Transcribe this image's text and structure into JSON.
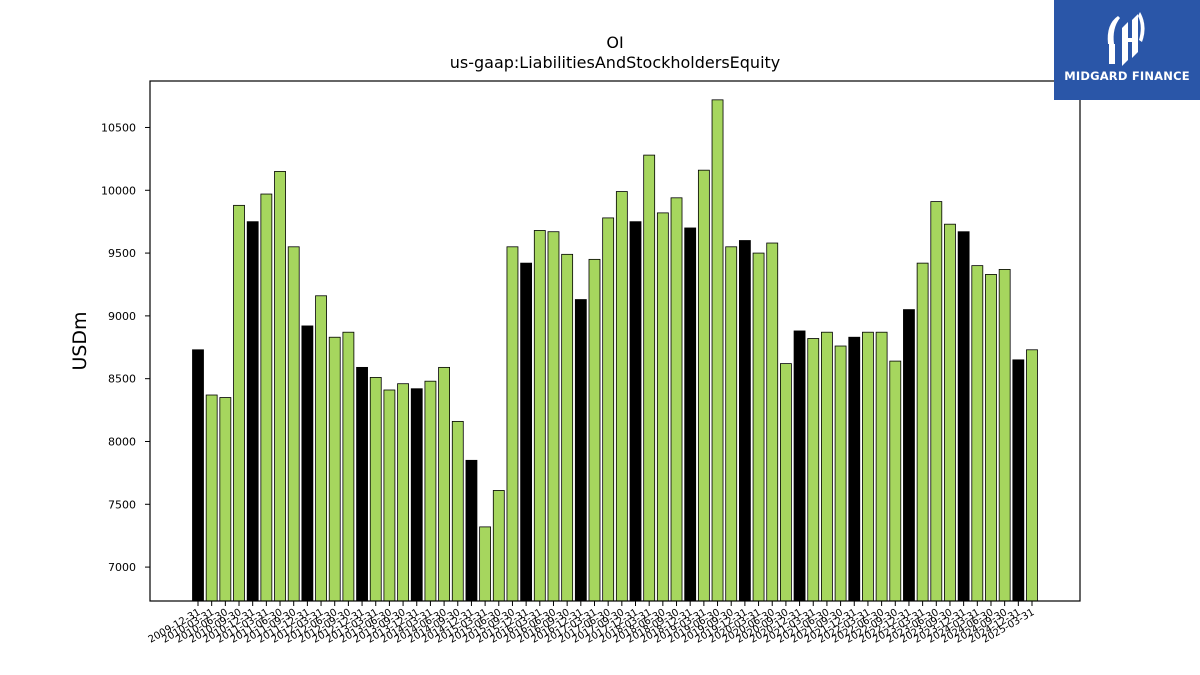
{
  "chart_data": {
    "type": "bar",
    "title": "OI",
    "subtitle": "us-gaap:LiabilitiesAndStockholdersEquity",
    "xlabel": "",
    "ylabel": "USDm",
    "ylim": [
      6730,
      10870
    ],
    "yticks": [
      7000,
      7500,
      8000,
      8500,
      9000,
      9500,
      10000,
      10500
    ],
    "grid": false,
    "colors": {
      "annual": "#000000",
      "quarterly": "#a6d65e",
      "edge": "#000000"
    },
    "categories": [
      "2009-12-31",
      "2010-03-31",
      "2010-06-30",
      "2010-09-30",
      "2010-12-31",
      "2011-03-31",
      "2011-06-30",
      "2011-09-30",
      "2011-12-31",
      "2012-03-31",
      "2012-06-30",
      "2012-09-30",
      "2012-12-31",
      "2013-03-31",
      "2013-06-30",
      "2013-09-30",
      "2013-12-31",
      "2014-03-31",
      "2014-06-30",
      "2014-09-30",
      "2014-12-31",
      "2015-03-31",
      "2015-06-30",
      "2015-09-30",
      "2015-12-31",
      "2016-03-31",
      "2016-06-30",
      "2016-09-30",
      "2016-12-31",
      "2017-03-31",
      "2017-06-30",
      "2017-09-30",
      "2017-12-31",
      "2018-03-31",
      "2018-06-30",
      "2018-09-30",
      "2018-12-31",
      "2019-03-31",
      "2019-06-30",
      "2019-09-30",
      "2019-12-31",
      "2020-03-31",
      "2020-06-30",
      "2020-09-30",
      "2020-12-31",
      "2021-03-31",
      "2021-06-30",
      "2021-09-30",
      "2021-12-31",
      "2022-03-31",
      "2022-06-30",
      "2022-09-30",
      "2022-12-31",
      "2023-03-31",
      "2023-06-30",
      "2023-09-30",
      "2023-12-31",
      "2024-03-31",
      "2024-06-30",
      "2024-09-30",
      "2024-12-31",
      "2025-03-31"
    ],
    "values": [
      8730,
      8370,
      8350,
      9880,
      9750,
      9970,
      10150,
      9550,
      8920,
      9160,
      8830,
      8870,
      8590,
      8510,
      8410,
      8460,
      8420,
      8480,
      8590,
      8160,
      7850,
      7320,
      7610,
      9550,
      9420,
      9680,
      9670,
      9490,
      9130,
      9450,
      9780,
      9990,
      9750,
      10280,
      9820,
      9940,
      9700,
      10160,
      10720,
      9550,
      9600,
      9500,
      9580,
      8620,
      8880,
      8820,
      8870,
      8760,
      8830,
      8870,
      8870,
      8640,
      9050,
      9420,
      9910,
      9730,
      9670,
      9400,
      9330,
      9370,
      8650,
      8730
    ],
    "annual_flags": [
      1,
      0,
      0,
      0,
      1,
      0,
      0,
      0,
      1,
      0,
      0,
      0,
      1,
      0,
      0,
      0,
      1,
      0,
      0,
      0,
      1,
      0,
      0,
      0,
      1,
      0,
      0,
      0,
      1,
      0,
      0,
      0,
      1,
      0,
      0,
      0,
      1,
      0,
      0,
      0,
      1,
      0,
      0,
      0,
      1,
      0,
      0,
      0,
      1,
      0,
      0,
      0,
      1,
      0,
      0,
      0,
      1,
      0,
      0,
      0,
      1,
      0
    ]
  },
  "logo": {
    "text": "MIDGARD FINANCE"
  }
}
